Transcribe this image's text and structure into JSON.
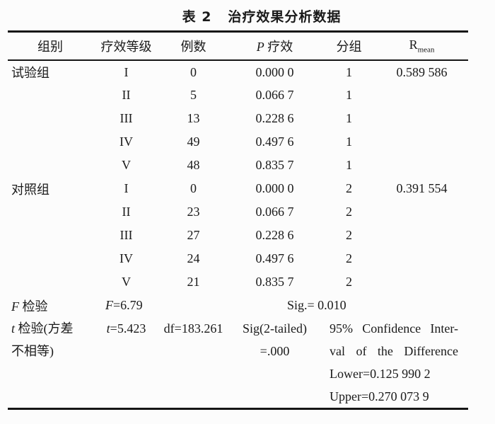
{
  "title": "表 2   治疗效果分析数据",
  "table": {
    "headers": {
      "group": "组别",
      "grade": "疗效等级",
      "cases": "例数",
      "p_italic": "P",
      "p_label": " 疗效",
      "grouping": "分组",
      "r_base": "R",
      "r_sub": "mean"
    },
    "rows": [
      {
        "group": "试验组",
        "grade": "I",
        "cases": "0",
        "p": "0.000 0",
        "grouping": "1",
        "r_mean": "0.589 586"
      },
      {
        "group": "",
        "grade": "II",
        "cases": "5",
        "p": "0.066 7",
        "grouping": "1",
        "r_mean": ""
      },
      {
        "group": "",
        "grade": "III",
        "cases": "13",
        "p": "0.228 6",
        "grouping": "1",
        "r_mean": ""
      },
      {
        "group": "",
        "grade": "IV",
        "cases": "49",
        "p": "0.497 6",
        "grouping": "1",
        "r_mean": ""
      },
      {
        "group": "",
        "grade": "V",
        "cases": "48",
        "p": "0.835 7",
        "grouping": "1",
        "r_mean": ""
      },
      {
        "group": "对照组",
        "grade": "I",
        "cases": "0",
        "p": "0.000 0",
        "grouping": "2",
        "r_mean": "0.391 554"
      },
      {
        "group": "",
        "grade": "II",
        "cases": "23",
        "p": "0.066 7",
        "grouping": "2",
        "r_mean": ""
      },
      {
        "group": "",
        "grade": "III",
        "cases": "27",
        "p": "0.228 6",
        "grouping": "2",
        "r_mean": ""
      },
      {
        "group": "",
        "grade": "IV",
        "cases": "24",
        "p": "0.497 6",
        "grouping": "2",
        "r_mean": ""
      },
      {
        "group": "",
        "grade": "V",
        "cases": "21",
        "p": "0.835 7",
        "grouping": "2",
        "r_mean": ""
      }
    ],
    "f_test": {
      "label_italic": "F",
      "label_rest": " 检验",
      "stat_italic": "F",
      "stat_rest": "=6.79",
      "sig": "Sig.= 0.010"
    },
    "t_test": {
      "label_italic": "t",
      "label_rest": " 检验(方差",
      "label_line2": "不相等)",
      "stat_italic": "t",
      "stat_rest": "=5.423",
      "df": "df=183.261",
      "sig_line1": "Sig(2-tailed)",
      "sig_line2": "=.000",
      "ci_line1": "95% Confidence Inter-",
      "ci_line2": "val of the Difference",
      "ci_lower": "Lower=0.125 990 2",
      "ci_upper": "Upper=0.270 073 9"
    }
  }
}
